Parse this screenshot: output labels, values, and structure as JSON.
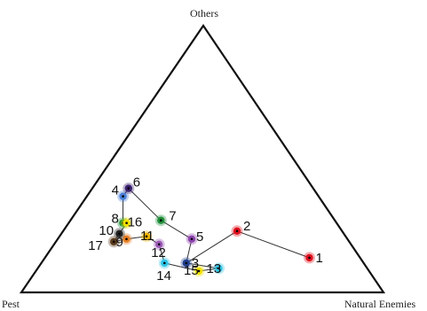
{
  "chart_data": {
    "type": "ternary-scatter",
    "vertices": {
      "top": "Others",
      "bottom_left": "Pest",
      "bottom_right": "Natural Enemies"
    },
    "point_order": [
      "1",
      "2",
      "3",
      "4",
      "5",
      "6",
      "7",
      "8",
      "9",
      "10",
      "11",
      "12",
      "13",
      "14",
      "15",
      "16",
      "17"
    ],
    "points": [
      {
        "label": "1",
        "pest": 0.14,
        "natural_enemies": 0.73,
        "others": 0.13,
        "color": "#e0101e"
      },
      {
        "label": "2",
        "pest": 0.29,
        "natural_enemies": 0.48,
        "others": 0.23,
        "color": "#e0101e"
      },
      {
        "label": "3",
        "pest": 0.49,
        "natural_enemies": 0.4,
        "others": 0.11,
        "color": "#1f3f8f"
      },
      {
        "label": "4",
        "pest": 0.54,
        "natural_enemies": 0.1,
        "others": 0.36,
        "color": "#4a7fd6"
      },
      {
        "label": "5",
        "pest": 0.43,
        "natural_enemies": 0.37,
        "others": 0.2,
        "color": "#8e44ad"
      },
      {
        "label": "6",
        "pest": 0.51,
        "natural_enemies": 0.1,
        "others": 0.39,
        "color": "#3a1f6e"
      },
      {
        "label": "7",
        "pest": 0.48,
        "natural_enemies": 0.25,
        "others": 0.27,
        "color": "#1f8f3a"
      },
      {
        "label": "8",
        "pest": 0.59,
        "natural_enemies": 0.15,
        "others": 0.26,
        "color": "#1f8f3a"
      },
      {
        "label": "9",
        "pest": 0.61,
        "natural_enemies": 0.19,
        "others": 0.2,
        "color": "#e67e22"
      },
      {
        "label": "10",
        "pest": 0.62,
        "natural_enemies": 0.16,
        "others": 0.22,
        "color": "#222222"
      },
      {
        "label": "11",
        "pest": 0.55,
        "natural_enemies": 0.24,
        "others": 0.21,
        "color": "#f2b400"
      },
      {
        "label": "12",
        "pest": 0.53,
        "natural_enemies": 0.29,
        "others": 0.18,
        "color": "#9b59b6"
      },
      {
        "label": "13",
        "pest": 0.41,
        "natural_enemies": 0.5,
        "others": 0.09,
        "color": "#2ec4e6"
      },
      {
        "label": "14",
        "pest": 0.55,
        "natural_enemies": 0.34,
        "others": 0.11,
        "color": "#2ec4e6"
      },
      {
        "label": "15",
        "pest": 0.47,
        "natural_enemies": 0.45,
        "others": 0.08,
        "color": "#f2e200"
      },
      {
        "label": "16",
        "pest": 0.58,
        "natural_enemies": 0.16,
        "others": 0.26,
        "color": "#f2e200"
      },
      {
        "label": "17",
        "pest": 0.65,
        "natural_enemies": 0.16,
        "others": 0.19,
        "color": "#5a3a1a"
      }
    ],
    "path": [
      "1",
      "2",
      "3",
      "5",
      "7",
      "6",
      "4",
      "8",
      "16",
      "10",
      "17",
      "9",
      "11",
      "12",
      "14",
      "15",
      "13",
      "3"
    ]
  }
}
